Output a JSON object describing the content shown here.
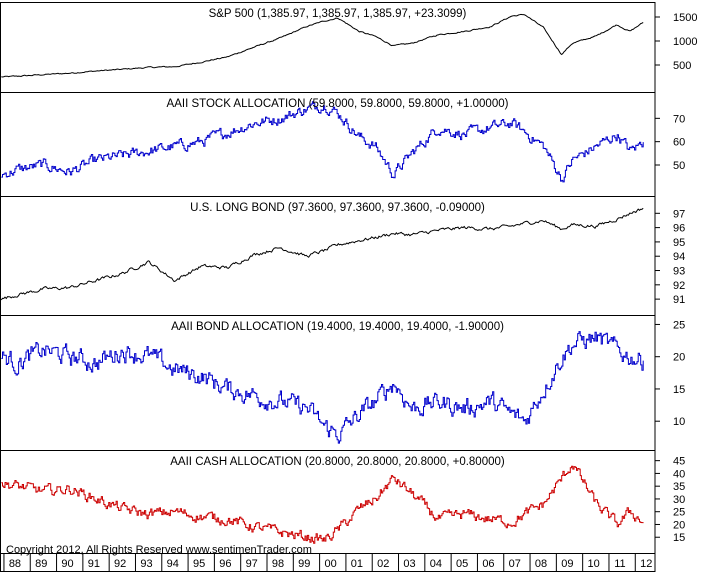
{
  "chart_data": [
    {
      "type": "line",
      "title": "S&P 500 (1,385.97, 1,385.97, 1,385.97, +23.3099)",
      "color": "#000000",
      "ylim": [
        0,
        1750
      ],
      "yticks": [
        500,
        1000,
        1500
      ],
      "x": [
        1987.9,
        1988.5,
        1989.5,
        1990.5,
        1991.5,
        1992.5,
        1993.5,
        1994.5,
        1995.5,
        1996.5,
        1997.5,
        1998.5,
        1999.5,
        2000.2,
        2000.7,
        2001.5,
        2002.1,
        2002.8,
        2003.5,
        2004.5,
        2005.5,
        2006.5,
        2007.3,
        2007.8,
        2008.5,
        2009.2,
        2009.6,
        2010.5,
        2011.3,
        2011.8,
        2012.3
      ],
      "values": [
        250,
        265,
        300,
        330,
        375,
        410,
        450,
        465,
        560,
        670,
        870,
        1060,
        1300,
        1420,
        1480,
        1200,
        1100,
        900,
        950,
        1130,
        1200,
        1300,
        1520,
        1550,
        1280,
        720,
        950,
        1100,
        1340,
        1200,
        1386
      ]
    },
    {
      "type": "line",
      "title": "AAII STOCK ALLOCATION (59.8000, 59.8000, 59.8000, +1.00000)",
      "color": "#0000cc",
      "ylim": [
        38,
        80
      ],
      "yticks": [
        50,
        60,
        70
      ],
      "x": [
        1987.9,
        1988.5,
        1989.5,
        1990.5,
        1991.5,
        1992.5,
        1993.5,
        1994.5,
        1995.5,
        1996.5,
        1997.5,
        1998.5,
        1999.5,
        2000.2,
        2000.7,
        2001.5,
        2002.1,
        2002.8,
        2003.5,
        2004.5,
        2005.5,
        2006.5,
        2007.3,
        2007.8,
        2008.5,
        2009.2,
        2009.6,
        2010.5,
        2011.3,
        2011.8,
        2012.3
      ],
      "values": [
        46,
        48,
        50,
        47,
        52,
        54,
        56,
        58,
        60,
        64,
        68,
        70,
        74,
        76,
        72,
        62,
        58,
        46,
        55,
        66,
        63,
        66,
        68,
        64,
        58,
        44,
        52,
        58,
        63,
        56,
        59.8
      ]
    },
    {
      "type": "line",
      "title": "U.S. LONG BOND (97.3600, 97.3600, 97.3600, -0.09000)",
      "color": "#000000",
      "ylim": [
        90.1,
        98.0
      ],
      "yticks": [
        91,
        92,
        93,
        94,
        95,
        96,
        97
      ],
      "x": [
        1987.9,
        1988.5,
        1989.5,
        1990.5,
        1991.5,
        1992.5,
        1993.5,
        1994.5,
        1995.5,
        1996.5,
        1997.5,
        1998.5,
        1999.5,
        2000.2,
        2000.7,
        2001.5,
        2002.1,
        2002.8,
        2003.5,
        2004.5,
        2005.5,
        2006.5,
        2007.3,
        2007.8,
        2008.5,
        2009.2,
        2009.6,
        2010.5,
        2011.3,
        2011.8,
        2012.3
      ],
      "values": [
        91.0,
        91.3,
        91.7,
        91.8,
        92.3,
        92.8,
        93.6,
        92.3,
        93.3,
        93.2,
        94.1,
        94.6,
        94.0,
        94.4,
        94.8,
        95.1,
        95.3,
        95.6,
        95.5,
        95.8,
        96.0,
        95.9,
        96.1,
        96.3,
        96.5,
        95.9,
        96.2,
        96.1,
        96.6,
        97.0,
        97.36
      ]
    },
    {
      "type": "line",
      "title": "AAII BOND ALLOCATION (19.4000, 19.4000, 19.4000, -1.90000)",
      "color": "#0000cc",
      "ylim": [
        6,
        26
      ],
      "yticks": [
        10,
        15,
        20,
        25
      ],
      "x": [
        1987.9,
        1988.5,
        1989.5,
        1990.5,
        1991.5,
        1992.5,
        1993.5,
        1994.5,
        1995.5,
        1996.5,
        1997.5,
        1998.5,
        1999.5,
        2000.2,
        2000.7,
        2001.5,
        2002.1,
        2002.8,
        2003.5,
        2004.5,
        2005.5,
        2006.5,
        2007.3,
        2007.8,
        2008.5,
        2009.2,
        2009.6,
        2010.5,
        2011.3,
        2011.8,
        2012.3
      ],
      "values": [
        20,
        19,
        21,
        20,
        19,
        21,
        20,
        18,
        17,
        15,
        14,
        13,
        12,
        9,
        8,
        11,
        13,
        16,
        12,
        13,
        12,
        13,
        11,
        10,
        15,
        20,
        22,
        23,
        21,
        20,
        19.4
      ]
    },
    {
      "type": "line",
      "title": "AAII CASH ALLOCATION (20.8000, 20.8000, 20.8000, +0.80000)",
      "color": "#cc0000",
      "ylim": [
        10,
        48
      ],
      "yticks": [
        15,
        20,
        25,
        30,
        35,
        40,
        45
      ],
      "x": [
        1987.9,
        1988.5,
        1989.5,
        1990.5,
        1991.5,
        1992.5,
        1993.5,
        1994.5,
        1995.5,
        1996.5,
        1997.5,
        1998.5,
        1999.5,
        2000.2,
        2000.7,
        2001.5,
        2002.1,
        2002.8,
        2003.5,
        2004.5,
        2005.5,
        2006.5,
        2007.3,
        2007.8,
        2008.5,
        2009.2,
        2009.6,
        2010.5,
        2011.3,
        2011.8,
        2012.3
      ],
      "values": [
        36,
        35,
        33,
        34,
        30,
        26,
        24,
        25,
        23,
        22,
        19,
        17,
        15,
        14,
        18,
        26,
        30,
        38,
        32,
        22,
        24,
        22,
        21,
        24,
        28,
        38,
        44,
        28,
        20,
        25,
        20.8
      ]
    }
  ],
  "x_axis": {
    "labels": [
      "88",
      "89",
      "90",
      "91",
      "92",
      "93",
      "94",
      "95",
      "96",
      "97",
      "98",
      "99",
      "00",
      "01",
      "02",
      "03",
      "04",
      "05",
      "06",
      "07",
      "08",
      "09",
      "10",
      "11",
      "12"
    ],
    "label_years": [
      1988,
      1989,
      1990,
      1991,
      1992,
      1993,
      1994,
      1995,
      1996,
      1997,
      1998,
      1999,
      2000,
      2001,
      2002,
      2003,
      2004,
      2005,
      2006,
      2007,
      2008,
      2009,
      2010,
      2011,
      2012
    ],
    "xlim": [
      1987.85,
      2012.75
    ]
  },
  "copyright": "Copyright 2012, All Rights Reserved  www.sentimenTrader.com"
}
